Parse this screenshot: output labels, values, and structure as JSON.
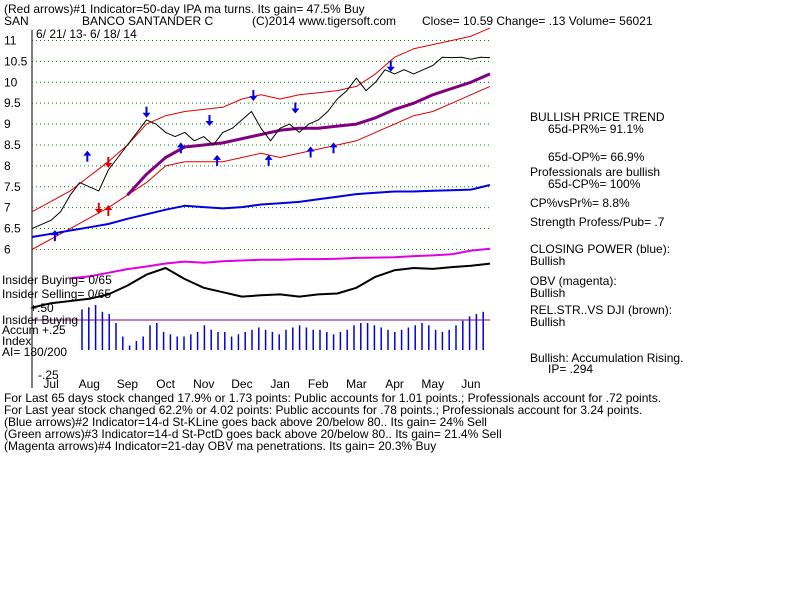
{
  "header": {
    "line1": "(Red arrows)#1 Indicator=50-day IPA ma turns. Its gain= 47.5% Buy",
    "symbol": "SAN",
    "company": "BANCO SANTANDER C",
    "copyright": "(C)2014 www.tigersoft.com",
    "quote": "Close= 10.59 Change= .13 Volume= 56021",
    "date_range": "6/ 21/ 13- 6/ 18/ 14"
  },
  "sidebar": {
    "bullish_price_trend": "BULLISH PRICE TREND",
    "pr65": "65d-PR%= 91.1%",
    "op65": "65d-OP%= 66.9%",
    "pros_bullish": "Professionals are bullish",
    "cp65": "65d-CP%= 100%",
    "cp_vs_pr": "CP%vsPr%= 8.8%",
    "strength": "Strength Profess/Pub= .7",
    "closing_power": "CLOSING POWER (blue):",
    "closing_power_value": "Bullish",
    "obv": "OBV (magenta):",
    "obv_value": "Bullish",
    "relstr": "REL.STR..VS DJI (brown):",
    "relstr_value": "Bullish",
    "accum": "Bullish: Accumulation Rising.",
    "ip": "IP= .294"
  },
  "labels": {
    "insider_buying": "Insider Buying= 0/65",
    "insider_selling": "Insider Selling= 0/65",
    "plus50": "+.50",
    "insider_buying2": "Insider Buying",
    "accum": "Accum",
    "plus25": "+.25",
    "index": "Index",
    "ai": "AI= 180/200",
    "minus25": "-.25"
  },
  "footer": [
    "For Last 65 days stock changed 17.9% or 1.73 points: Public accounts for 1.01 points.; Professionals account for .72 points.",
    "For Last year stock changed 62.2% or 4.02 points: Public accounts for .78 points.; Professionals account for 3.24 points.",
    "(Blue arrows)#2 Indicator=14-d St-KLine goes back above 20/below 80.. Its gain= 24% Sell",
    "(Green arrows)#3 Indicator=14-d St-PctD goes back above 20/below 80.. Its gain= 21.4% Sell",
    "(Magenta arrows)#4 Indicator=21-day OBV ma penetrations. Its gain= 20.3% Buy"
  ],
  "colors": {
    "price": "#000000",
    "bands": "#e00000",
    "ma": "#800080",
    "closing_power": "#0000e0",
    "obv": "#e000e0",
    "relstr": "#000000",
    "accum_bars": "#0000e0",
    "grid": "#008000",
    "up_arrow": "#0000e0",
    "down_arrow": "#0000e0",
    "red_arrow": "#e00000"
  },
  "chart_data": {
    "type": "line",
    "yticks": [
      6,
      6.5,
      7,
      7.5,
      8,
      8.5,
      9,
      9.5,
      10,
      10.5,
      11
    ],
    "ylim": [
      5.7,
      11.25
    ],
    "months": [
      "Jul",
      "Aug",
      "Sep",
      "Oct",
      "Nov",
      "Dec",
      "Jan",
      "Feb",
      "Mar",
      "Apr",
      "May",
      "Jun"
    ],
    "month_pos": [
      0.5,
      1.5,
      2.5,
      3.5,
      4.5,
      5.5,
      6.5,
      7.5,
      8.5,
      9.5,
      10.5,
      11.5
    ],
    "x_range": [
      0,
      12
    ],
    "price": {
      "x": [
        0,
        0.25,
        0.5,
        0.75,
        1,
        1.25,
        1.5,
        1.75,
        2,
        2.25,
        2.5,
        2.75,
        3,
        3.25,
        3.5,
        3.75,
        4,
        4.25,
        4.5,
        4.75,
        5,
        5.25,
        5.5,
        5.75,
        6,
        6.25,
        6.5,
        6.75,
        7,
        7.25,
        7.5,
        7.75,
        8,
        8.25,
        8.5,
        8.75,
        9,
        9.25,
        9.5,
        9.75,
        10,
        10.25,
        10.5,
        10.75,
        11,
        11.25,
        11.5,
        11.75,
        12
      ],
      "y": [
        6.5,
        6.6,
        6.7,
        6.9,
        7.3,
        7.6,
        7.5,
        7.4,
        7.9,
        8.2,
        8.5,
        8.8,
        9.1,
        9.0,
        8.8,
        8.7,
        8.8,
        8.6,
        8.7,
        8.5,
        8.8,
        8.9,
        9.1,
        9.3,
        8.9,
        8.6,
        8.9,
        9.0,
        8.8,
        9.0,
        9.1,
        9.3,
        9.6,
        9.8,
        10.1,
        9.8,
        10.0,
        10.3,
        10.2,
        10.3,
        10.2,
        10.3,
        10.4,
        10.6,
        10.59,
        10.6,
        10.55,
        10.6,
        10.59
      ]
    },
    "ma50": {
      "x": [
        2.5,
        3,
        3.5,
        4,
        4.5,
        5,
        5.5,
        6,
        6.5,
        7,
        7.5,
        8,
        8.5,
        9,
        9.5,
        10,
        10.5,
        11,
        11.5,
        12
      ],
      "y": [
        7.3,
        7.8,
        8.2,
        8.45,
        8.5,
        8.55,
        8.65,
        8.75,
        8.85,
        8.9,
        8.9,
        8.95,
        9.0,
        9.15,
        9.35,
        9.5,
        9.7,
        9.85,
        10.0,
        10.2
      ]
    },
    "upper_band": {
      "x": [
        0,
        1,
        2,
        2.5,
        3,
        3.5,
        4,
        5,
        5.5,
        6,
        6.5,
        7,
        7.5,
        8,
        8.5,
        9,
        9.5,
        10,
        10.5,
        11,
        11.5,
        12
      ],
      "y": [
        6.9,
        7.4,
        8.1,
        8.5,
        9.0,
        9.2,
        9.3,
        9.4,
        9.6,
        9.7,
        9.6,
        9.7,
        9.75,
        9.8,
        9.9,
        10.2,
        10.6,
        10.8,
        10.9,
        11.0,
        11.1,
        11.3
      ]
    },
    "lower_band": {
      "x": [
        0,
        1,
        2,
        2.5,
        3,
        3.5,
        4,
        5,
        5.5,
        6,
        6.5,
        7,
        7.5,
        8,
        8.5,
        9,
        9.5,
        10,
        10.5,
        11,
        11.5,
        12
      ],
      "y": [
        6.0,
        6.5,
        7.0,
        7.3,
        7.6,
        8.0,
        8.1,
        8.1,
        8.2,
        8.3,
        8.2,
        8.3,
        8.4,
        8.5,
        8.6,
        8.8,
        9.0,
        9.2,
        9.3,
        9.5,
        9.7,
        9.9
      ]
    },
    "closing_power": {
      "x": [
        0,
        0.5,
        1,
        1.5,
        2,
        2.5,
        3,
        3.5,
        4,
        4.5,
        5,
        5.5,
        6,
        6.5,
        7,
        7.5,
        8,
        8.5,
        9,
        9.5,
        10,
        10.5,
        11,
        11.5,
        12
      ],
      "y": [
        0.2,
        0.25,
        0.3,
        0.35,
        0.4,
        0.48,
        0.55,
        0.62,
        0.68,
        0.66,
        0.64,
        0.66,
        0.7,
        0.72,
        0.74,
        0.78,
        0.82,
        0.86,
        0.88,
        0.9,
        0.9,
        0.91,
        0.92,
        0.93,
        1.0
      ]
    },
    "obv": {
      "x": [
        1,
        1.5,
        2,
        2.5,
        3,
        3.5,
        4,
        4.5,
        5,
        5.5,
        6,
        6.5,
        7,
        7.5,
        8,
        8.5,
        9,
        9.5,
        10,
        10.5,
        11,
        11.5,
        12
      ],
      "y": [
        0.1,
        0.15,
        0.25,
        0.35,
        0.42,
        0.5,
        0.55,
        0.52,
        0.56,
        0.58,
        0.6,
        0.6,
        0.62,
        0.62,
        0.63,
        0.65,
        0.66,
        0.67,
        0.7,
        0.72,
        0.75,
        0.85,
        0.9
      ]
    },
    "relstr": {
      "x": [
        0,
        0.5,
        1,
        1.5,
        2,
        2.5,
        3,
        3.5,
        4,
        4.5,
        5,
        5.5,
        6,
        6.5,
        7,
        7.5,
        8,
        8.5,
        9,
        9.5,
        10,
        10.5,
        11,
        11.5,
        12
      ],
      "y": [
        0.1,
        0.2,
        0.25,
        0.3,
        0.4,
        0.6,
        0.85,
        1.0,
        0.75,
        0.55,
        0.45,
        0.35,
        0.38,
        0.4,
        0.35,
        0.4,
        0.42,
        0.55,
        0.8,
        0.95,
        1.0,
        0.98,
        1.02,
        1.05,
        1.1
      ]
    },
    "accum_bars": [
      0.9,
      0.95,
      1.0,
      0.85,
      0.8,
      0.6,
      0.3,
      0.1,
      0.2,
      0.3,
      0.55,
      0.6,
      0.4,
      0.35,
      0.3,
      0.3,
      0.35,
      0.4,
      0.55,
      0.45,
      0.4,
      0.4,
      0.3,
      0.35,
      0.4,
      0.45,
      0.5,
      0.45,
      0.4,
      0.35,
      0.45,
      0.5,
      0.55,
      0.5,
      0.45,
      0.45,
      0.4,
      0.35,
      0.4,
      0.45,
      0.55,
      0.6,
      0.6,
      0.55,
      0.5,
      0.45,
      0.4,
      0.45,
      0.5,
      0.55,
      0.6,
      0.55,
      0.45,
      0.4,
      0.45,
      0.55,
      0.65,
      0.75,
      0.8,
      0.85
    ],
    "arrows": [
      {
        "x": 0.6,
        "y": 6.2,
        "dir": "up",
        "color": "blue"
      },
      {
        "x": 1.45,
        "y": 8.1,
        "dir": "up",
        "color": "blue"
      },
      {
        "x": 1.75,
        "y": 6.9,
        "dir": "down",
        "color": "red"
      },
      {
        "x": 2.0,
        "y": 8.0,
        "dir": "down",
        "color": "red"
      },
      {
        "x": 2.0,
        "y": 6.8,
        "dir": "up",
        "color": "red"
      },
      {
        "x": 3.0,
        "y": 9.2,
        "dir": "down",
        "color": "blue"
      },
      {
        "x": 3.9,
        "y": 8.3,
        "dir": "up",
        "color": "blue"
      },
      {
        "x": 4.65,
        "y": 9.0,
        "dir": "down",
        "color": "blue"
      },
      {
        "x": 4.85,
        "y": 8.0,
        "dir": "up",
        "color": "blue"
      },
      {
        "x": 5.8,
        "y": 9.6,
        "dir": "down",
        "color": "blue"
      },
      {
        "x": 6.2,
        "y": 8.0,
        "dir": "up",
        "color": "blue"
      },
      {
        "x": 6.9,
        "y": 9.3,
        "dir": "down",
        "color": "blue"
      },
      {
        "x": 7.3,
        "y": 8.2,
        "dir": "up",
        "color": "blue"
      },
      {
        "x": 7.9,
        "y": 8.3,
        "dir": "up",
        "color": "blue"
      },
      {
        "x": 9.4,
        "y": 10.3,
        "dir": "down",
        "color": "blue"
      }
    ]
  }
}
